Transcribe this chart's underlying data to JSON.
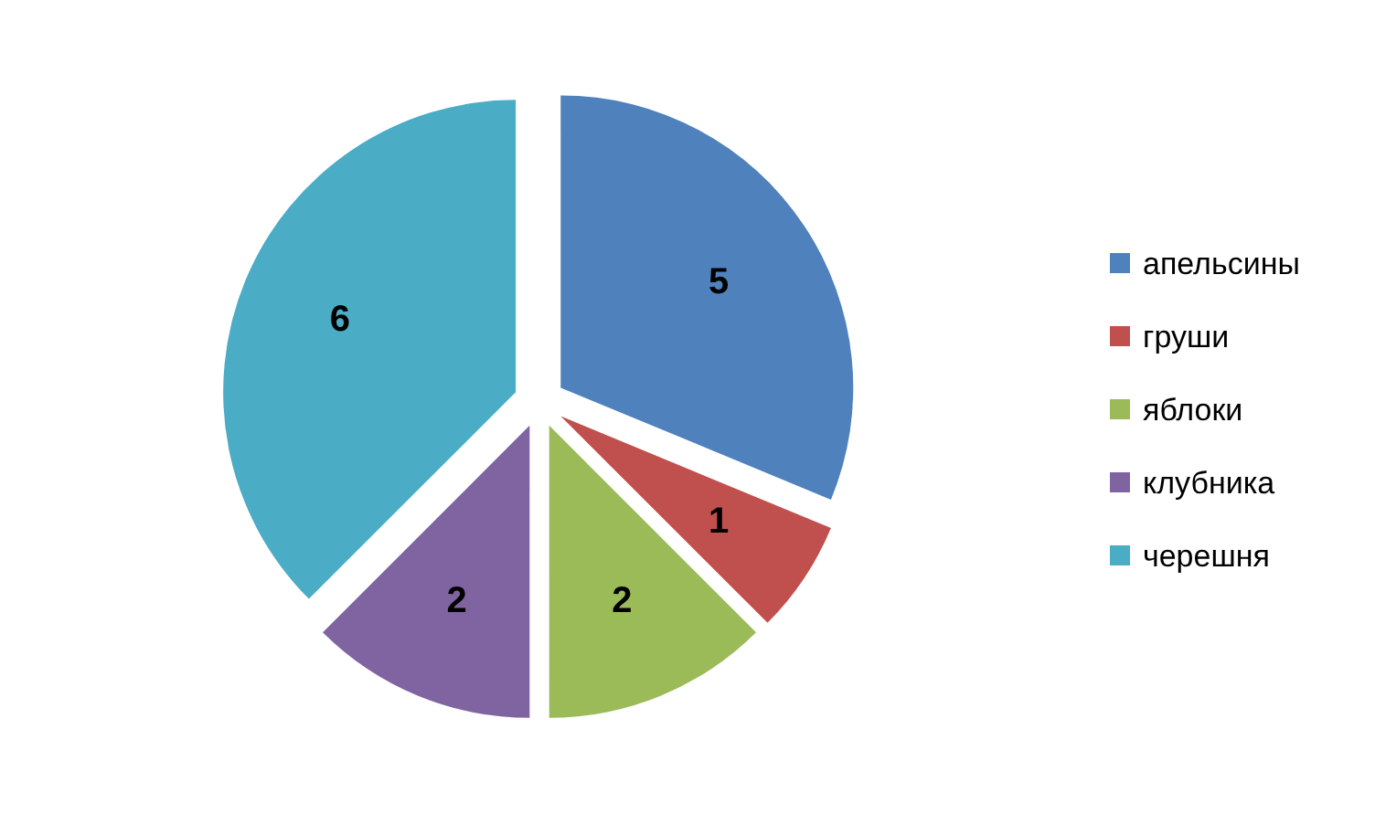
{
  "chart_data": {
    "type": "pie",
    "categories": [
      "апельсины",
      "груши",
      "яблоки",
      "клубника",
      "черешня"
    ],
    "values": [
      5,
      1,
      2,
      2,
      6
    ],
    "colors": [
      "#4f81bd",
      "#c0504d",
      "#9bbb59",
      "#8064a2",
      "#4bacc6"
    ],
    "data_labels": true,
    "legend": "right"
  }
}
